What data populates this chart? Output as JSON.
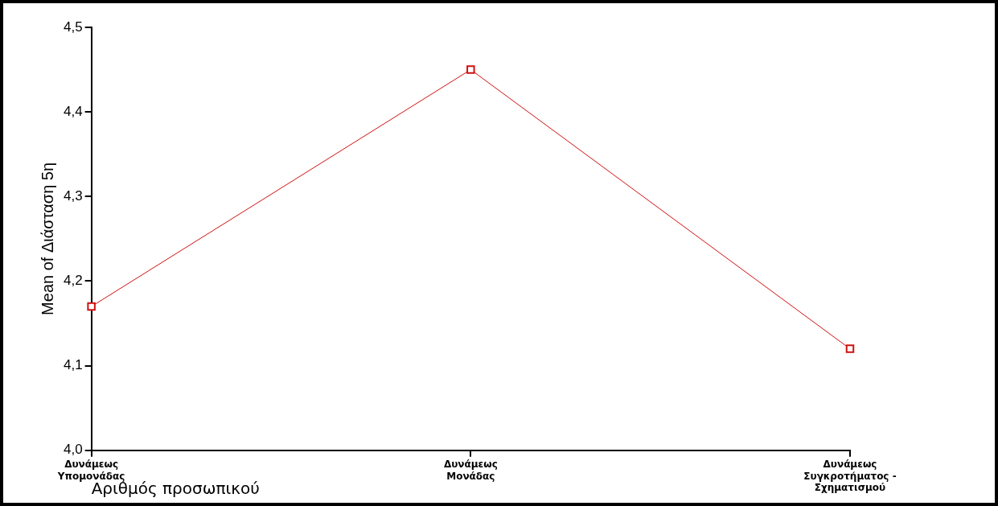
{
  "chart_data": {
    "type": "line",
    "xlabel": "Αριθμός προσωπικού",
    "ylabel": "Mean of Διάσταση 5η",
    "categories": [
      "Δυνάμεως\nΥπομονάδας",
      "Δυνάμεως\nΜονάδας",
      "Δυνάμεως\nΣυγκροτήματος -\nΣχηματισμού"
    ],
    "series": [
      {
        "color": "#d01010",
        "values": [
          4.17,
          4.45,
          4.12
        ]
      }
    ],
    "ylim": [
      4.0,
      4.5
    ],
    "yticks": [
      {
        "value": 4.0,
        "label": "4,0"
      },
      {
        "value": 4.1,
        "label": "4,1"
      },
      {
        "value": 4.2,
        "label": "4,2"
      },
      {
        "value": 4.3,
        "label": "4,3"
      },
      {
        "value": 4.4,
        "label": "4,4"
      },
      {
        "value": 4.5,
        "label": "4,5"
      }
    ],
    "marker": "square"
  }
}
